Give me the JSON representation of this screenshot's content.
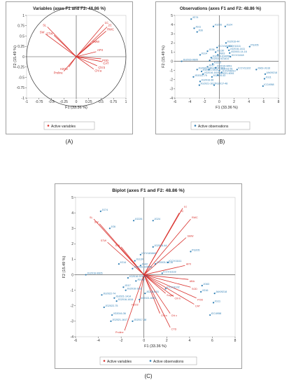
{
  "captions": {
    "a": "(A)",
    "b": "(B)",
    "c": "(C)"
  },
  "colors": {
    "variables": "#d9302c",
    "observations": "#2f7fb5",
    "axis": "#444444",
    "frame": "#888888"
  },
  "chart_data": [
    {
      "type": "scatter",
      "subtype": "correlation-circle",
      "title": "Variables (axes F1 and F2: 48.86 %)",
      "xlabel": "F1 (33.36 %)",
      "ylabel": "F2 (15.49 %)",
      "xlim": [
        -1,
        1
      ],
      "ylim": [
        -1,
        1
      ],
      "xticks": [
        "-1",
        "-0.75",
        "-0.5",
        "-0.25",
        "0",
        "0.25",
        "0.5",
        "0.75",
        "1"
      ],
      "yticks": [
        "-1",
        "-0.75",
        "-0.5",
        "-0.25",
        "0",
        "0.25",
        "0.5",
        "0.75",
        "1"
      ],
      "legend": "Active variables",
      "legend_position": "bottom",
      "grid": false,
      "vectors": [
        {
          "label": "SL",
          "x": -0.58,
          "y": 0.72
        },
        {
          "label": "SW",
          "x": -0.62,
          "y": 0.55
        },
        {
          "label": "STW",
          "x": -0.45,
          "y": 0.52
        },
        {
          "label": "1C",
          "x": 0.55,
          "y": 0.78
        },
        {
          "label": "2C",
          "x": 0.62,
          "y": 0.72
        },
        {
          "label": "RWC",
          "x": 0.6,
          "y": 0.62
        },
        {
          "label": "SMW",
          "x": 0.3,
          "y": 0.32
        },
        {
          "label": "APX",
          "x": 0.4,
          "y": 0.12
        },
        {
          "label": "POD",
          "x": 0.5,
          "y": -0.05
        },
        {
          "label": "CAT",
          "x": 0.52,
          "y": -0.12
        },
        {
          "label": "Chl b",
          "x": 0.42,
          "y": -0.22
        },
        {
          "label": "Chl a",
          "x": 0.35,
          "y": -0.3
        },
        {
          "label": "H2O2",
          "x": -0.15,
          "y": -0.25
        },
        {
          "label": "Proline",
          "x": -0.25,
          "y": -0.35
        }
      ]
    },
    {
      "type": "scatter",
      "title": "Observations (axes F1 and F2: 48.86 %)",
      "xlabel": "F1 (33.36 %)",
      "ylabel": "F2 (15.49 %)",
      "xlim": [
        -6,
        8
      ],
      "ylim": [
        -4,
        5
      ],
      "xticks": [
        "-6",
        "-4",
        "-2",
        "0",
        "2",
        "4",
        "6",
        "8"
      ],
      "yticks": [
        "-4",
        "-3",
        "-2",
        "-1",
        "0",
        "1",
        "2",
        "3",
        "4",
        "5"
      ],
      "legend": "Active observations",
      "legend_position": "bottom",
      "grid": false,
      "points": [
        {
          "label": "JG74",
          "x": -3.8,
          "y": 4.6
        },
        {
          "label": "JG11",
          "x": -3.4,
          "y": 3.6
        },
        {
          "label": "JG6",
          "x": -3.0,
          "y": 3.2
        },
        {
          "label": "JG226",
          "x": -0.8,
          "y": 3.8
        },
        {
          "label": "JG24",
          "x": 0.8,
          "y": 3.8
        },
        {
          "label": "JG2016-44",
          "x": 0.9,
          "y": 2.0
        },
        {
          "label": "ICCV181664",
          "x": -0.3,
          "y": 1.5
        },
        {
          "label": "ICCV11111",
          "x": 1.1,
          "y": 1.5
        },
        {
          "label": "JG2016-1411",
          "x": 1.3,
          "y": 1.2
        },
        {
          "label": "PG205",
          "x": 4.1,
          "y": 1.6
        },
        {
          "label": "JG36",
          "x": -1.6,
          "y": 1.1
        },
        {
          "label": "JG130",
          "x": -0.5,
          "y": 1.0
        },
        {
          "label": "JG2003-14-16",
          "x": 1.4,
          "y": 0.9
        },
        {
          "label": "JG14",
          "x": -2.6,
          "y": 0.7
        },
        {
          "label": "JG63",
          "x": -0.2,
          "y": 0.7
        },
        {
          "label": "ICCV11118",
          "x": 1.5,
          "y": 0.5
        },
        {
          "label": "JG2016-634958",
          "x": -1.1,
          "y": 0.4
        },
        {
          "label": "JG2016-921814",
          "x": -1.3,
          "y": 0.1
        },
        {
          "label": "JG2016-9605",
          "x": -5.1,
          "y": 0.0
        },
        {
          "label": "JG315",
          "x": -0.9,
          "y": -0.3
        },
        {
          "label": "JG17",
          "x": -1.6,
          "y": -0.6
        },
        {
          "label": "JG2016-9651",
          "x": -0.5,
          "y": -0.7
        },
        {
          "label": "ICCV11102",
          "x": 2.4,
          "y": -0.9
        },
        {
          "label": "JG2021-74",
          "x": -3.0,
          "y": -0.9
        },
        {
          "label": "JG2016-1611",
          "x": -1.4,
          "y": -0.9
        },
        {
          "label": "JG2018-51",
          "x": 0.0,
          "y": -1.0
        },
        {
          "label": "JG63-JG16",
          "x": 5.0,
          "y": -0.9
        },
        {
          "label": "JG2021-1414",
          "x": -2.4,
          "y": -1.1
        },
        {
          "label": "ICCV06410",
          "x": 0.3,
          "y": -1.2
        },
        {
          "label": "JG2016-1614",
          "x": -2.2,
          "y": -1.4
        },
        {
          "label": "JG2021-6051",
          "x": -0.2,
          "y": -1.5
        },
        {
          "label": "JAKI9218",
          "x": 6.2,
          "y": -1.4
        },
        {
          "label": "JG2022-75",
          "x": -3.5,
          "y": -1.7
        },
        {
          "label": "JG2016-43",
          "x": -1.0,
          "y": -1.7
        },
        {
          "label": "JG11",
          "x": 6.1,
          "y": -1.9
        },
        {
          "label": "JG2016-36",
          "x": -2.6,
          "y": -2.2
        },
        {
          "label": "JG2021-1617",
          "x": -2.7,
          "y": -2.6
        },
        {
          "label": "JG2017-48",
          "x": -0.7,
          "y": -2.6
        },
        {
          "label": "ICC4958",
          "x": 5.9,
          "y": -2.7
        }
      ]
    },
    {
      "type": "scatter",
      "subtype": "biplot",
      "title": "Biplot (axes F1 and F2: 48.86 %)",
      "xlabel": "F1 (33.36 %)",
      "ylabel": "F2 (15.49 %)",
      "xlim": [
        -6,
        8
      ],
      "ylim": [
        -4,
        5
      ],
      "xticks": [
        "-6",
        "-4",
        "-2",
        "0",
        "2",
        "4",
        "6",
        "8"
      ],
      "yticks": [
        "-4",
        "-3",
        "-2",
        "-1",
        "0",
        "1",
        "2",
        "3",
        "4",
        "5"
      ],
      "legend": [
        "Active variables",
        "Active observations"
      ],
      "legend_position": "bottom",
      "grid": false,
      "vectors": [
        {
          "label": "SL",
          "x": -4.4,
          "y": 3.6
        },
        {
          "label": "SW",
          "x": -3.9,
          "y": 3.3
        },
        {
          "label": "STW",
          "x": -3.2,
          "y": 2.1
        },
        {
          "label": "STK",
          "x": -2.0,
          "y": 1.8
        },
        {
          "label": "1C",
          "x": 3.4,
          "y": 4.3
        },
        {
          "label": "2C",
          "x": 3.1,
          "y": 4.0
        },
        {
          "label": "RWC",
          "x": 4.1,
          "y": 3.6
        },
        {
          "label": "SMW",
          "x": 3.7,
          "y": 2.4
        },
        {
          "label": "APX",
          "x": 3.6,
          "y": 0.6
        },
        {
          "label": "ABA",
          "x": 3.9,
          "y": -0.3
        },
        {
          "label": "SOD",
          "x": 4.1,
          "y": -0.8
        },
        {
          "label": "POD",
          "x": 4.6,
          "y": -1.5
        },
        {
          "label": "CAT",
          "x": 4.4,
          "y": -1.9
        },
        {
          "label": "Chl b",
          "x": 2.6,
          "y": -1.4
        },
        {
          "label": "Sugar",
          "x": 1.9,
          "y": -1.2
        },
        {
          "label": "Chl a",
          "x": 1.4,
          "y": -2.5
        },
        {
          "label": "Chl c",
          "x": 2.3,
          "y": -2.5
        },
        {
          "label": "CTD",
          "x": 2.3,
          "y": -3.4
        },
        {
          "label": "H2O2",
          "x": -0.4,
          "y": -1.8
        },
        {
          "label": "Proline",
          "x": -1.7,
          "y": -3.6
        }
      ],
      "points": [
        {
          "label": "JG74",
          "x": -3.8,
          "y": 4.1
        },
        {
          "label": "JG6",
          "x": -3.0,
          "y": 3.0
        },
        {
          "label": "JG226",
          "x": -0.9,
          "y": 3.5
        },
        {
          "label": "JG24",
          "x": 0.8,
          "y": 3.5
        },
        {
          "label": "JG2016-44",
          "x": 0.8,
          "y": 1.8
        },
        {
          "label": "ICCV181664",
          "x": -0.3,
          "y": 1.3
        },
        {
          "label": "PG205",
          "x": 4.1,
          "y": 1.5
        },
        {
          "label": "ICCV11111",
          "x": 2.1,
          "y": 0.8
        },
        {
          "label": "JG130",
          "x": -0.8,
          "y": 0.9
        },
        {
          "label": "JG2003-14-16",
          "x": 1.0,
          "y": 0.7
        },
        {
          "label": "JG14",
          "x": -2.2,
          "y": 0.7
        },
        {
          "label": "JG42",
          "x": -0.3,
          "y": 0.6
        },
        {
          "label": "ICCV11118",
          "x": 1.6,
          "y": 0.1
        },
        {
          "label": "JG2016-634958",
          "x": -1.0,
          "y": 0.4
        },
        {
          "label": "JG2016-921814",
          "x": -1.4,
          "y": -0.2
        },
        {
          "label": "JG2016-9605",
          "x": -5.1,
          "y": 0.0
        },
        {
          "label": "JG315",
          "x": -0.7,
          "y": -0.4
        },
        {
          "label": "JG17",
          "x": -1.8,
          "y": -0.8
        },
        {
          "label": "ICCV11102",
          "x": 1.9,
          "y": -0.9
        },
        {
          "label": "JG63",
          "x": 5.1,
          "y": -0.7
        },
        {
          "label": "JG16",
          "x": 5.0,
          "y": -1.1
        },
        {
          "label": "JAKI9218",
          "x": 6.2,
          "y": -1.2
        },
        {
          "label": "JG2022-74",
          "x": -3.7,
          "y": -1.3
        },
        {
          "label": "JG2016-1611",
          "x": -1.6,
          "y": -1.0
        },
        {
          "label": "JG2021-1414",
          "x": -2.6,
          "y": -1.5
        },
        {
          "label": "JG2016-1614",
          "x": -2.4,
          "y": -1.7
        },
        {
          "label": "JG2018-51",
          "x": 0.1,
          "y": -1.2
        },
        {
          "label": "JG2021-6051",
          "x": -0.4,
          "y": -1.6
        },
        {
          "label": "JG2022-75",
          "x": -3.5,
          "y": -2.1
        },
        {
          "label": "JG11",
          "x": 6.1,
          "y": -1.8
        },
        {
          "label": "JG2016-36",
          "x": -2.8,
          "y": -2.6
        },
        {
          "label": "JG2021-1617",
          "x": -2.9,
          "y": -3.0
        },
        {
          "label": "JG2017-48",
          "x": -1.0,
          "y": -3.0
        },
        {
          "label": "ICC4958",
          "x": 5.8,
          "y": -2.6
        }
      ]
    }
  ]
}
